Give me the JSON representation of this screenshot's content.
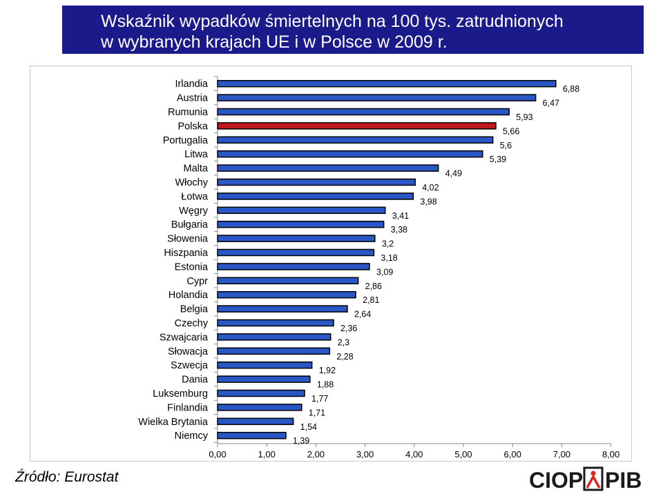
{
  "title": {
    "line1": "Wskaźnik wypadków śmiertelnych na 100 tys. zatrudnionych",
    "line2": "w wybranych krajach UE i w Polsce w 2009 r."
  },
  "source": "Źródło: Eurostat",
  "logo": {
    "left": "CIOP",
    "right": "PIB"
  },
  "colors": {
    "title_bg": "#1a1a8a",
    "bar": "#2a56c6",
    "highlight": "#c0181c",
    "bar_border": "#000000"
  },
  "chart_data": {
    "type": "bar",
    "orientation": "horizontal",
    "categories": [
      "Irlandia",
      "Austria",
      "Rumunia",
      "Polska",
      "Portugalia",
      "Litwa",
      "Malta",
      "Włochy",
      "Łotwa",
      "Węgry",
      "Bułgaria",
      "Słowenia",
      "Hiszpania",
      "Estonia",
      "Cypr",
      "Holandia",
      "Belgia",
      "Czechy",
      "Szwajcaria",
      "Słowacja",
      "Szwecja",
      "Dania",
      "Luksemburg",
      "Finlandia",
      "Wielka Brytania",
      "Niemcy"
    ],
    "values": [
      6.88,
      6.47,
      5.93,
      5.66,
      5.6,
      5.39,
      4.49,
      4.02,
      3.98,
      3.41,
      3.38,
      3.2,
      3.18,
      3.09,
      2.86,
      2.81,
      2.64,
      2.36,
      2.3,
      2.28,
      1.92,
      1.88,
      1.77,
      1.71,
      1.54,
      1.39
    ],
    "value_labels": [
      "6,88",
      "6,47",
      "5,93",
      "5,66",
      "5,6",
      "5,39",
      "4,49",
      "4,02",
      "3,98",
      "3,41",
      "3,38",
      "3,2",
      "3,18",
      "3,09",
      "2,86",
      "2,81",
      "2,64",
      "2,36",
      "2,3",
      "2,28",
      "1,92",
      "1,88",
      "1,77",
      "1,71",
      "1,54",
      "1,39"
    ],
    "highlight": "Polska",
    "xlim": [
      0,
      8
    ],
    "x_ticks": [
      "0,00",
      "1,00",
      "2,00",
      "3,00",
      "4,00",
      "5,00",
      "6,00",
      "7,00",
      "8,00"
    ],
    "grid": false,
    "legend": "none"
  }
}
